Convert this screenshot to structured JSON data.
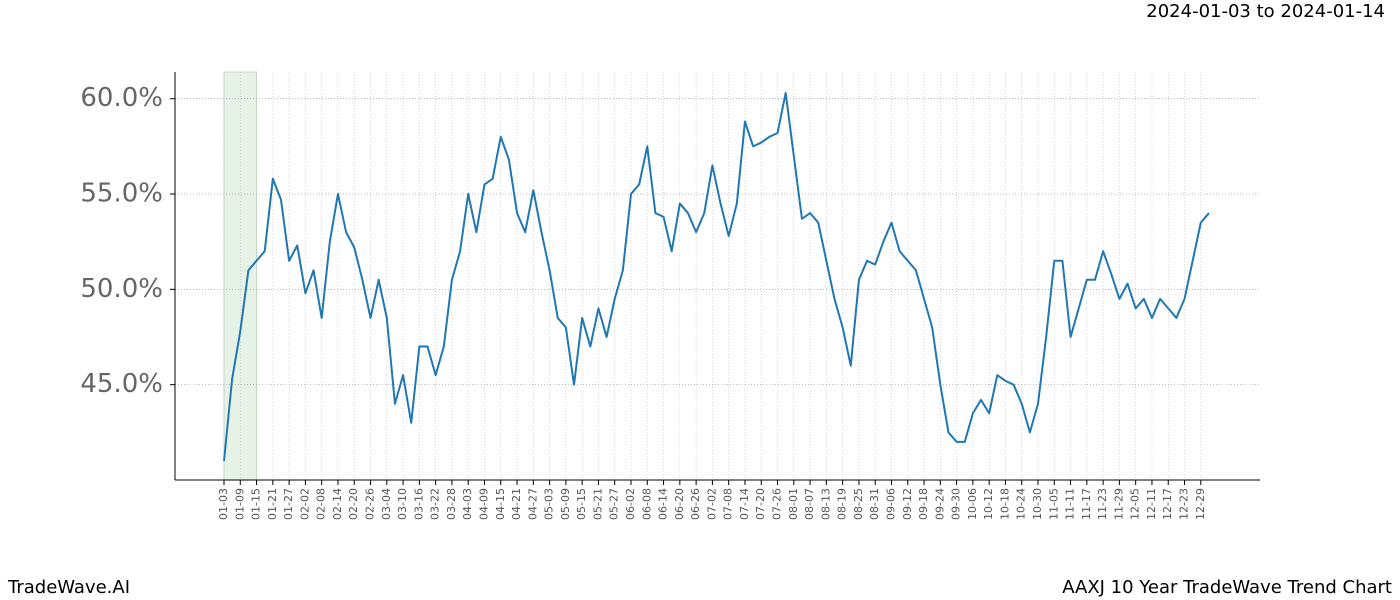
{
  "chart_data": {
    "type": "line",
    "subtitle": "2024-01-03 to 2024-01-14",
    "footer_left": "TradeWave.AI",
    "footer_right": "AAXJ 10 Year TradeWave Trend Chart",
    "categories": [
      "01-03",
      null,
      "01-09",
      null,
      "01-15",
      null,
      "01-21",
      null,
      "01-27",
      null,
      "02-02",
      null,
      "02-08",
      null,
      "02-14",
      null,
      "02-20",
      null,
      "02-26",
      null,
      "03-04",
      null,
      "03-10",
      null,
      "03-16",
      null,
      "03-22",
      null,
      "03-28",
      null,
      "04-03",
      null,
      "04-09",
      null,
      "04-15",
      null,
      "04-21",
      null,
      "04-27",
      null,
      "05-03",
      null,
      "05-09",
      null,
      "05-15",
      null,
      "05-21",
      null,
      "05-27",
      null,
      "06-02",
      null,
      "06-08",
      null,
      "06-14",
      null,
      "06-20",
      null,
      "06-26",
      null,
      "07-02",
      null,
      "07-08",
      null,
      "07-14",
      null,
      "07-20",
      null,
      "07-26",
      null,
      "08-01",
      null,
      "08-07",
      null,
      "08-13",
      null,
      "08-19",
      null,
      "08-25",
      null,
      "08-31",
      null,
      "09-06",
      null,
      "09-12",
      null,
      "09-18",
      null,
      "09-24",
      null,
      "09-30",
      null,
      "10-06",
      null,
      "10-12",
      null,
      "10-18",
      null,
      "10-24",
      null,
      "10-30",
      null,
      "11-05",
      null,
      "11-11",
      null,
      "11-17",
      null,
      "11-23",
      null,
      "11-29",
      null,
      "12-05",
      null,
      "12-11",
      null,
      "12-17",
      null,
      "12-23",
      null,
      "12-29",
      null
    ],
    "values": [
      41.0,
      45.3,
      47.8,
      51.0,
      51.5,
      52.0,
      55.8,
      54.7,
      51.5,
      52.3,
      49.8,
      51.0,
      48.5,
      52.5,
      55.0,
      53.0,
      52.2,
      50.5,
      48.5,
      50.5,
      48.5,
      44.0,
      45.5,
      43.0,
      47.0,
      47.0,
      45.5,
      47.0,
      50.5,
      52.0,
      55.0,
      53.0,
      55.5,
      55.8,
      58.0,
      56.8,
      54.0,
      53.0,
      55.2,
      53.0,
      51.0,
      48.5,
      48.0,
      45.0,
      48.5,
      47.0,
      49.0,
      47.5,
      49.5,
      51.0,
      55.0,
      55.5,
      57.5,
      54.0,
      53.8,
      52.0,
      54.5,
      54.0,
      53.0,
      54.0,
      56.5,
      54.5,
      52.8,
      54.5,
      58.8,
      57.5,
      57.7,
      58.0,
      58.2,
      60.3,
      57.0,
      53.7,
      54.0,
      53.5,
      51.5,
      49.5,
      48.0,
      46.0,
      50.5,
      51.5,
      51.3,
      52.5,
      53.5,
      52.0,
      51.5,
      51.0,
      49.5,
      48.0,
      45.0,
      42.5,
      42.0,
      42.0,
      43.5,
      44.2,
      43.5,
      45.5,
      45.2,
      45.0,
      44.0,
      42.5,
      44.0,
      47.5,
      51.5,
      51.5,
      47.5,
      49.0,
      50.5,
      50.5,
      52.0,
      50.8,
      49.5,
      50.3,
      49.0,
      49.5,
      48.5,
      49.5,
      49.0,
      48.5,
      49.5,
      51.5,
      53.5,
      54.0
    ],
    "color": "#1f77b4",
    "ylim": [
      40,
      61.4
    ],
    "yticks": [
      {
        "value": 45,
        "label": "45.0%"
      },
      {
        "value": 50,
        "label": "50.0%"
      },
      {
        "value": 55,
        "label": "55.0%"
      },
      {
        "value": 60,
        "label": "60.0%"
      }
    ],
    "grid": true,
    "highlight_x": [
      0,
      4
    ],
    "highlight_color": "#e6f2e6"
  }
}
